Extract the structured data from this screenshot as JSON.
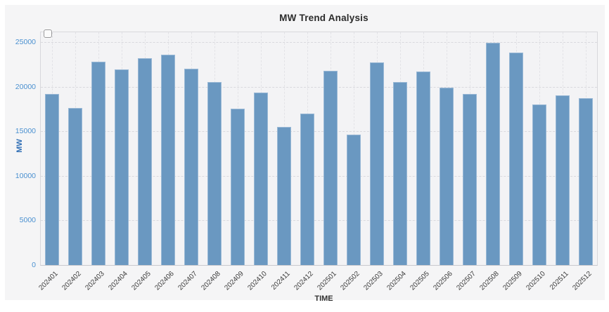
{
  "title_label": "MW Trend Analysis",
  "colors": {
    "page_background": "#ffffff",
    "card_background": "#f5f5f6",
    "plot_background": "#f3f3f5",
    "bar_fill": "#6a98c1",
    "bar_border": "#9ab9d6",
    "y_tick_label": "#4a90d0",
    "y_axis_title": "#2f6eb5",
    "x_tick_label": "#3c3c3c",
    "x_axis_title": "#333333",
    "grid_line": "#d9d9de"
  },
  "legend": {
    "checkbox_checked": false
  },
  "chart_data": {
    "type": "bar",
    "title": "MW Trend Analysis",
    "xlabel": "TIME",
    "ylabel": "MW",
    "categories": [
      "202401",
      "202402",
      "202403",
      "202404",
      "202405",
      "202406",
      "202407",
      "202408",
      "202409",
      "202410",
      "202411",
      "202412",
      "202501",
      "202502",
      "202503",
      "202504",
      "202505",
      "202506",
      "202507",
      "202508",
      "202509",
      "202510",
      "202511",
      "202512"
    ],
    "values": [
      19200,
      17600,
      22800,
      21900,
      23200,
      23600,
      22000,
      20500,
      17500,
      19300,
      15500,
      17000,
      21800,
      14600,
      22700,
      20500,
      21700,
      19900,
      19200,
      24900,
      23800,
      18000,
      19000,
      18700
    ],
    "ylim": [
      0,
      26100
    ],
    "yticks": [
      0,
      5000,
      10000,
      15000,
      20000,
      25000
    ],
    "grid": "dashed horizontal and vertical",
    "legend_position": "top-left-empty-checkbox"
  }
}
